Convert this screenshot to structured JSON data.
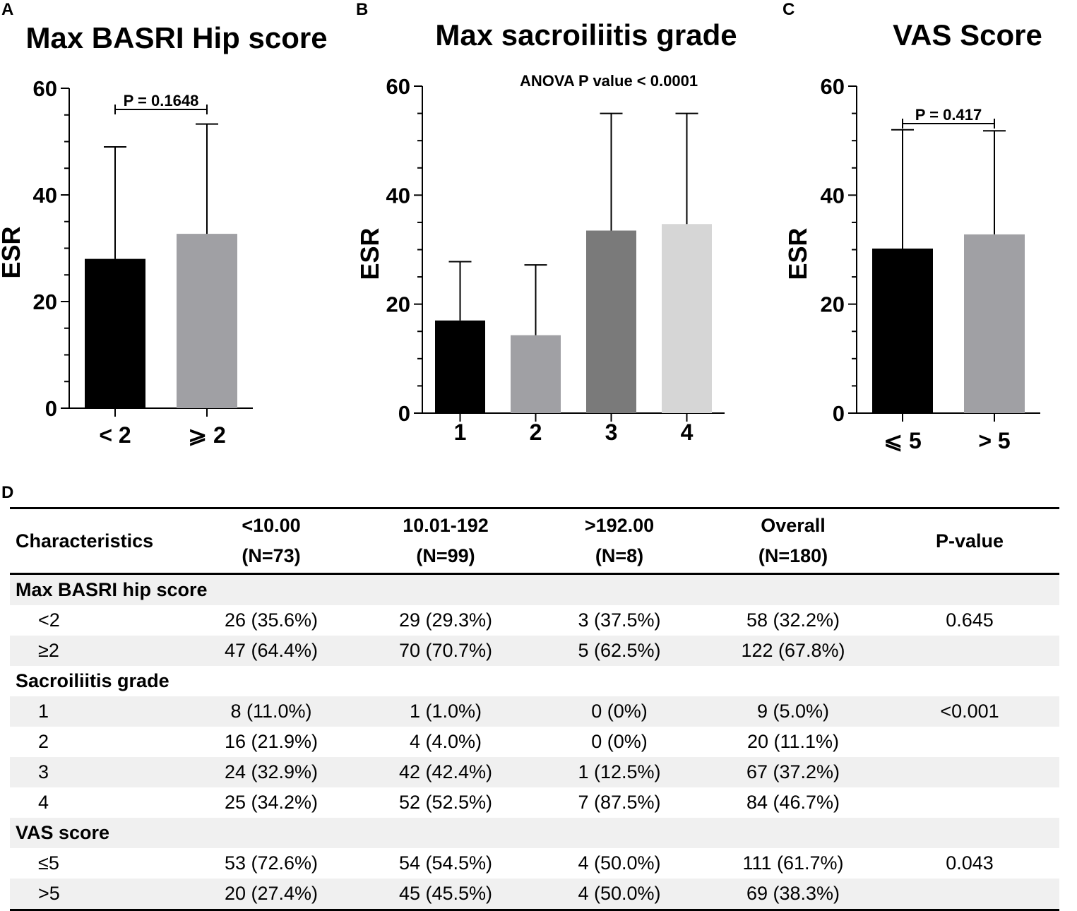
{
  "panel_letters": {
    "a": "A",
    "b": "B",
    "c": "C",
    "d": "D"
  },
  "chart_data": [
    {
      "type": "bar",
      "title": "Max BASRI Hip score",
      "ylabel": "ESR",
      "categories": [
        "< 2",
        "⩾ 2"
      ],
      "values": [
        28,
        32.7
      ],
      "error_upper": [
        49,
        53.3
      ],
      "colors": [
        "#000000",
        "#a0a0a4"
      ],
      "ylim": [
        0,
        60
      ],
      "yticks": [
        "0",
        "20",
        "40",
        "60"
      ],
      "annotation": "P = 0.1648"
    },
    {
      "type": "bar",
      "title": "Max sacroiliitis grade",
      "ylabel": "ESR",
      "categories": [
        "1",
        "2",
        "3",
        "4"
      ],
      "values": [
        17,
        14.3,
        33.5,
        34.7
      ],
      "error_upper": [
        27.8,
        27.2,
        55,
        55
      ],
      "colors": [
        "#000000",
        "#a0a0a4",
        "#7a7a7a",
        "#d6d6d6"
      ],
      "ylim": [
        0,
        60
      ],
      "yticks": [
        "0",
        "20",
        "40",
        "60"
      ],
      "annotation": "ANOVA P value < 0.0001"
    },
    {
      "type": "bar",
      "title": "VAS Score",
      "ylabel": "ESR",
      "categories": [
        "⩽ 5",
        "> 5"
      ],
      "values": [
        30.2,
        32.8
      ],
      "error_upper": [
        52,
        51.8
      ],
      "colors": [
        "#000000",
        "#a0a0a4"
      ],
      "ylim": [
        0,
        60
      ],
      "yticks": [
        "0",
        "20",
        "40",
        "60"
      ],
      "annotation": "P = 0.417"
    }
  ],
  "table": {
    "headers": [
      {
        "line1": "Characteristics",
        "line2": ""
      },
      {
        "line1": "<10.00",
        "line2": "(N=73)"
      },
      {
        "line1": "10.01-192",
        "line2": "(N=99)"
      },
      {
        "line1": ">192.00",
        "line2": "(N=8)"
      },
      {
        "line1": "Overall",
        "line2": "(N=180)"
      },
      {
        "line1": "P-value",
        "line2": ""
      }
    ],
    "rows": [
      {
        "group": "Max BASRI hip score"
      },
      {
        "label": "<2",
        "c1": "26 (35.6%)",
        "c2": "29 (29.3%)",
        "c3": "3 (37.5%)",
        "c4": "58 (32.2%)",
        "p": "0.645"
      },
      {
        "label": "≥2",
        "c1": "47 (64.4%)",
        "c2": "70 (70.7%)",
        "c3": "5 (62.5%)",
        "c4": "122 (67.8%)",
        "p": ""
      },
      {
        "group": "Sacroiliitis grade"
      },
      {
        "label": "1",
        "c1": "8 (11.0%)",
        "c2": "1 (1.0%)",
        "c3": "0 (0%)",
        "c4": "9 (5.0%)",
        "p": "<0.001"
      },
      {
        "label": "2",
        "c1": "16 (21.9%)",
        "c2": "4 (4.0%)",
        "c3": "0 (0%)",
        "c4": "20 (11.1%)",
        "p": ""
      },
      {
        "label": "3",
        "c1": "24 (32.9%)",
        "c2": "42 (42.4%)",
        "c3": "1 (12.5%)",
        "c4": "67 (37.2%)",
        "p": ""
      },
      {
        "label": "4",
        "c1": "25 (34.2%)",
        "c2": "52 (52.5%)",
        "c3": "7 (87.5%)",
        "c4": "84 (46.7%)",
        "p": ""
      },
      {
        "group": "VAS score"
      },
      {
        "label": "≤5",
        "c1": "53 (72.6%)",
        "c2": "54 (54.5%)",
        "c3": "4 (50.0%)",
        "c4": "111 (61.7%)",
        "p": "0.043"
      },
      {
        "label": ">5",
        "c1": "20 (27.4%)",
        "c2": "45 (45.5%)",
        "c3": "4 (50.0%)",
        "c4": "69 (38.3%)",
        "p": ""
      }
    ]
  }
}
